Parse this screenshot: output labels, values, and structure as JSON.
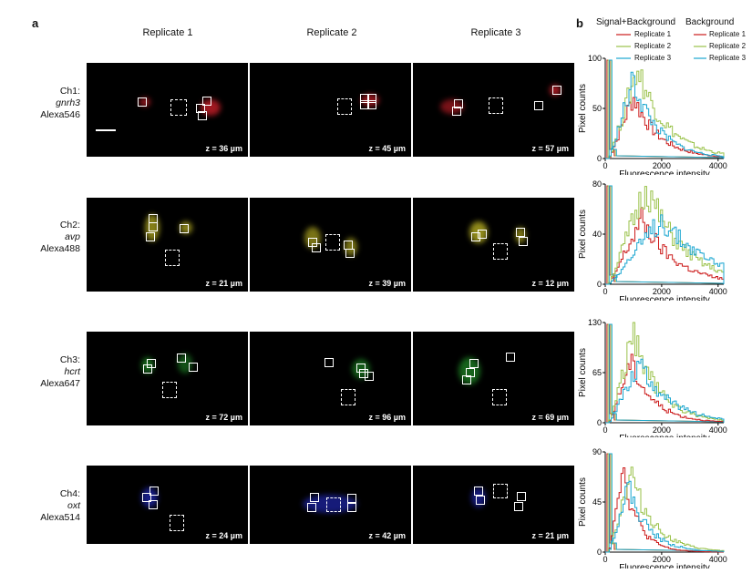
{
  "panel_a_label": "a",
  "panel_b_label": "b",
  "replicate_titles": [
    "Replicate 1",
    "Replicate 2",
    "Replicate 3"
  ],
  "rows": [
    {
      "channel": "Ch1:",
      "gene": "gnrh3",
      "dye": "Alexa546",
      "color": "#e0202a",
      "z": [
        "z = 36 µm",
        "z = 45 µm",
        "z = 57 µm"
      ]
    },
    {
      "channel": "Ch2:",
      "gene": "avp",
      "dye": "Alexa488",
      "color": "#e8e03a",
      "z": [
        "z = 21 µm",
        "z = 39 µm",
        "z = 12 µm"
      ]
    },
    {
      "channel": "Ch3:",
      "gene": "hcrt",
      "dye": "Alexa647",
      "color": "#28c038",
      "z": [
        "z = 72 µm",
        "z = 96 µm",
        "z = 69 µm"
      ]
    },
    {
      "channel": "Ch4:",
      "gene": "oxt",
      "dye": "Alexa514",
      "color": "#3040e8",
      "z": [
        "z = 24 µm",
        "z = 42 µm",
        "z = 21 µm"
      ]
    }
  ],
  "legend": {
    "signal_header": "Signal+Background",
    "background_header": "Background",
    "entries": [
      {
        "name": "Replicate 1",
        "color": "#cc1a1a"
      },
      {
        "name": "Replicate 2",
        "color": "#9ac24a"
      },
      {
        "name": "Replicate 3",
        "color": "#1aa6d0"
      }
    ]
  },
  "chart_data": [
    {
      "type": "line",
      "ylabel": "Pixel counts",
      "xlabel": "Fluorescence intensity",
      "xlim": [
        0,
        4200
      ],
      "ylim": [
        0,
        100
      ],
      "xticks": [
        0,
        2000,
        4000
      ],
      "yticks": [
        0,
        50,
        100
      ],
      "series": [
        {
          "name": "Replicate 1",
          "peak": 1000,
          "height": 62
        },
        {
          "name": "Replicate 2",
          "peak": 1150,
          "height": 90
        },
        {
          "name": "Replicate 3",
          "peak": 1000,
          "height": 78
        }
      ]
    },
    {
      "type": "line",
      "ylabel": "Pixel counts",
      "xlabel": "Fluorescence intensity",
      "xlim": [
        0,
        4200
      ],
      "ylim": [
        0,
        80
      ],
      "xticks": [
        0,
        2000,
        4000
      ],
      "yticks": [
        0,
        40,
        80
      ],
      "series": [
        {
          "name": "Replicate 1",
          "peak": 1300,
          "height": 52
        },
        {
          "name": "Replicate 2",
          "peak": 1450,
          "height": 78
        },
        {
          "name": "Replicate 3",
          "peak": 2000,
          "height": 52
        }
      ]
    },
    {
      "type": "line",
      "ylabel": "Pixel counts",
      "xlabel": "Fluorescence intensity",
      "xlim": [
        0,
        4200
      ],
      "ylim": [
        0,
        130
      ],
      "xticks": [
        0,
        2000,
        4000
      ],
      "yticks": [
        0,
        65,
        130
      ],
      "series": [
        {
          "name": "Replicate 1",
          "peak": 900,
          "height": 80
        },
        {
          "name": "Replicate 2",
          "peak": 1000,
          "height": 115
        },
        {
          "name": "Replicate 3",
          "peak": 1200,
          "height": 78
        }
      ]
    },
    {
      "type": "line",
      "ylabel": "Pixel counts",
      "xlabel": "Fluorescence intensity",
      "xlim": [
        0,
        4200
      ],
      "ylim": [
        0,
        90
      ],
      "xticks": [
        0,
        2000,
        4000
      ],
      "yticks": [
        0,
        45,
        90
      ],
      "series": [
        {
          "name": "Replicate 1",
          "peak": 600,
          "height": 78
        },
        {
          "name": "Replicate 2",
          "peak": 900,
          "height": 72
        },
        {
          "name": "Replicate 3",
          "peak": 800,
          "height": 60
        }
      ]
    }
  ]
}
